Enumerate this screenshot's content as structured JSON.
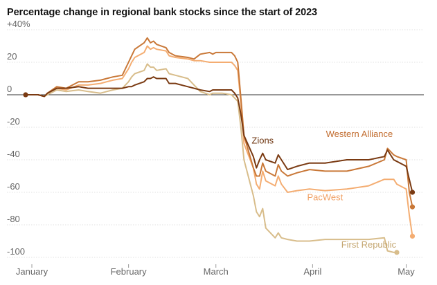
{
  "chart_data": {
    "type": "line",
    "title": "Percentage change in regional bank stocks since the start of 2023",
    "xlabel": "",
    "ylabel": "",
    "ylim": [
      -103,
      43
    ],
    "yticks": [
      40,
      20,
      0,
      -20,
      -40,
      -60,
      -80,
      -100
    ],
    "ytick_labels": [
      "+40%",
      "20",
      "0",
      "-20",
      "-40",
      "-60",
      "-80",
      "-100"
    ],
    "xlim": [
      "2022-12-30",
      "2023-05-06"
    ],
    "xticks": [
      "2023-01-01",
      "2023-02-01",
      "2023-03-01",
      "2023-04-01",
      "2023-05-01"
    ],
    "xtick_labels": [
      "January",
      "February",
      "March",
      "April",
      "May"
    ],
    "grid": "horizontal",
    "legend": "inline labels",
    "series": [
      {
        "name": "First Republic",
        "color": "#d8bd8b",
        "label_at": [
          "2023-04-19",
          -94
        ],
        "label_color": "#c4a670",
        "end_dot": true,
        "points": [
          [
            "2023-01-03",
            0
          ],
          [
            "2023-01-05",
            -1
          ],
          [
            "2023-01-06",
            0
          ],
          [
            "2023-01-09",
            3
          ],
          [
            "2023-01-12",
            2
          ],
          [
            "2023-01-16",
            3
          ],
          [
            "2023-01-19",
            2
          ],
          [
            "2023-01-23",
            1
          ],
          [
            "2023-01-25",
            2
          ],
          [
            "2023-01-27",
            3
          ],
          [
            "2023-01-30",
            4
          ],
          [
            "2023-02-01",
            8
          ],
          [
            "2023-02-02",
            11
          ],
          [
            "2023-02-03",
            13
          ],
          [
            "2023-02-06",
            15
          ],
          [
            "2023-02-07",
            19
          ],
          [
            "2023-02-08",
            17
          ],
          [
            "2023-02-09",
            17
          ],
          [
            "2023-02-10",
            15
          ],
          [
            "2023-02-13",
            16
          ],
          [
            "2023-02-14",
            13
          ],
          [
            "2023-02-16",
            12
          ],
          [
            "2023-02-20",
            10
          ],
          [
            "2023-02-22",
            6
          ],
          [
            "2023-02-24",
            2
          ],
          [
            "2023-02-27",
            0
          ],
          [
            "2023-02-28",
            1
          ],
          [
            "2023-03-01",
            1
          ],
          [
            "2023-03-03",
            1
          ],
          [
            "2023-03-06",
            0
          ],
          [
            "2023-03-07",
            -2
          ],
          [
            "2023-03-08",
            -4
          ],
          [
            "2023-03-09",
            -20
          ],
          [
            "2023-03-10",
            -40
          ],
          [
            "2023-03-13",
            -62
          ],
          [
            "2023-03-14",
            -72
          ],
          [
            "2023-03-15",
            -75
          ],
          [
            "2023-03-16",
            -70
          ],
          [
            "2023-03-17",
            -82
          ],
          [
            "2023-03-20",
            -88
          ],
          [
            "2023-03-21",
            -85
          ],
          [
            "2023-03-22",
            -88
          ],
          [
            "2023-03-24",
            -89
          ],
          [
            "2023-03-27",
            -90
          ],
          [
            "2023-03-31",
            -90
          ],
          [
            "2023-04-05",
            -89
          ],
          [
            "2023-04-12",
            -89
          ],
          [
            "2023-04-19",
            -89
          ],
          [
            "2023-04-24",
            -88
          ],
          [
            "2023-04-25",
            -96
          ],
          [
            "2023-04-27",
            -97
          ],
          [
            "2023-04-28",
            -97
          ]
        ]
      },
      {
        "name": "PacWest",
        "color": "#f4ad72",
        "label_at": [
          "2023-04-05",
          -65
        ],
        "label_color": "#f0a064",
        "end_dot": true,
        "points": [
          [
            "2023-01-03",
            0
          ],
          [
            "2023-01-05",
            -1
          ],
          [
            "2023-01-06",
            1
          ],
          [
            "2023-01-09",
            4
          ],
          [
            "2023-01-12",
            3
          ],
          [
            "2023-01-16",
            6
          ],
          [
            "2023-01-19",
            6
          ],
          [
            "2023-01-23",
            7
          ],
          [
            "2023-01-25",
            8
          ],
          [
            "2023-01-27",
            9
          ],
          [
            "2023-01-30",
            10
          ],
          [
            "2023-02-01",
            16
          ],
          [
            "2023-02-02",
            20
          ],
          [
            "2023-02-03",
            23
          ],
          [
            "2023-02-06",
            26
          ],
          [
            "2023-02-07",
            30
          ],
          [
            "2023-02-08",
            28
          ],
          [
            "2023-02-09",
            29
          ],
          [
            "2023-02-10",
            28
          ],
          [
            "2023-02-13",
            27
          ],
          [
            "2023-02-14",
            24
          ],
          [
            "2023-02-16",
            23
          ],
          [
            "2023-02-20",
            22
          ],
          [
            "2023-02-22",
            21
          ],
          [
            "2023-02-24",
            21
          ],
          [
            "2023-02-27",
            20
          ],
          [
            "2023-02-28",
            20
          ],
          [
            "2023-03-01",
            20
          ],
          [
            "2023-03-03",
            20
          ],
          [
            "2023-03-06",
            20
          ],
          [
            "2023-03-07",
            18
          ],
          [
            "2023-03-08",
            15
          ],
          [
            "2023-03-09",
            -5
          ],
          [
            "2023-03-10",
            -30
          ],
          [
            "2023-03-13",
            -45
          ],
          [
            "2023-03-14",
            -55
          ],
          [
            "2023-03-15",
            -58
          ],
          [
            "2023-03-16",
            -47
          ],
          [
            "2023-03-17",
            -53
          ],
          [
            "2023-03-20",
            -56
          ],
          [
            "2023-03-21",
            -50
          ],
          [
            "2023-03-22",
            -55
          ],
          [
            "2023-03-24",
            -60
          ],
          [
            "2023-03-27",
            -59
          ],
          [
            "2023-03-31",
            -58
          ],
          [
            "2023-04-05",
            -59
          ],
          [
            "2023-04-12",
            -58
          ],
          [
            "2023-04-19",
            -56
          ],
          [
            "2023-04-24",
            -52
          ],
          [
            "2023-04-27",
            -52
          ],
          [
            "2023-04-28",
            -55
          ],
          [
            "2023-05-01",
            -58
          ],
          [
            "2023-05-02",
            -74
          ],
          [
            "2023-05-03",
            -87
          ]
        ]
      },
      {
        "name": "Western Alliance",
        "color": "#c97838",
        "label_at": [
          "2023-04-16",
          -26
        ],
        "label_color": "#c26d30",
        "end_dot": true,
        "points": [
          [
            "2023-01-03",
            0
          ],
          [
            "2023-01-05",
            -1
          ],
          [
            "2023-01-06",
            1
          ],
          [
            "2023-01-09",
            5
          ],
          [
            "2023-01-12",
            4
          ],
          [
            "2023-01-16",
            8
          ],
          [
            "2023-01-19",
            8
          ],
          [
            "2023-01-23",
            9
          ],
          [
            "2023-01-25",
            10
          ],
          [
            "2023-01-27",
            11
          ],
          [
            "2023-01-30",
            12
          ],
          [
            "2023-02-01",
            20
          ],
          [
            "2023-02-02",
            24
          ],
          [
            "2023-02-03",
            28
          ],
          [
            "2023-02-06",
            32
          ],
          [
            "2023-02-07",
            35
          ],
          [
            "2023-02-08",
            32
          ],
          [
            "2023-02-09",
            33
          ],
          [
            "2023-02-10",
            31
          ],
          [
            "2023-02-13",
            29
          ],
          [
            "2023-02-14",
            26
          ],
          [
            "2023-02-16",
            24
          ],
          [
            "2023-02-20",
            23
          ],
          [
            "2023-02-22",
            22
          ],
          [
            "2023-02-24",
            25
          ],
          [
            "2023-02-27",
            26
          ],
          [
            "2023-02-28",
            25
          ],
          [
            "2023-03-01",
            26
          ],
          [
            "2023-03-03",
            26
          ],
          [
            "2023-03-06",
            26
          ],
          [
            "2023-03-07",
            24
          ],
          [
            "2023-03-08",
            20
          ],
          [
            "2023-03-09",
            -2
          ],
          [
            "2023-03-10",
            -25
          ],
          [
            "2023-03-13",
            -45
          ],
          [
            "2023-03-14",
            -50
          ],
          [
            "2023-03-15",
            -50
          ],
          [
            "2023-03-16",
            -42
          ],
          [
            "2023-03-17",
            -47
          ],
          [
            "2023-03-20",
            -50
          ],
          [
            "2023-03-21",
            -43
          ],
          [
            "2023-03-22",
            -47
          ],
          [
            "2023-03-24",
            -50
          ],
          [
            "2023-03-27",
            -48
          ],
          [
            "2023-03-31",
            -46
          ],
          [
            "2023-04-05",
            -47
          ],
          [
            "2023-04-12",
            -47
          ],
          [
            "2023-04-19",
            -44
          ],
          [
            "2023-04-24",
            -40
          ],
          [
            "2023-04-25",
            -33
          ],
          [
            "2023-04-27",
            -37
          ],
          [
            "2023-04-28",
            -38
          ],
          [
            "2023-05-01",
            -40
          ],
          [
            "2023-05-02",
            -60
          ],
          [
            "2023-05-03",
            -69
          ]
        ]
      },
      {
        "name": "Zions",
        "color": "#7a3a12",
        "label_at": [
          "2023-03-16",
          -30
        ],
        "label_color": "#6e3510",
        "end_dot": true,
        "points": [
          [
            "2022-12-30",
            0
          ],
          [
            "2023-01-03",
            0
          ],
          [
            "2023-01-05",
            -1
          ],
          [
            "2023-01-06",
            1
          ],
          [
            "2023-01-09",
            4
          ],
          [
            "2023-01-12",
            4
          ],
          [
            "2023-01-16",
            5
          ],
          [
            "2023-01-19",
            4
          ],
          [
            "2023-01-23",
            4
          ],
          [
            "2023-01-25",
            4
          ],
          [
            "2023-01-27",
            4
          ],
          [
            "2023-01-30",
            4
          ],
          [
            "2023-02-01",
            5
          ],
          [
            "2023-02-02",
            5
          ],
          [
            "2023-02-03",
            6
          ],
          [
            "2023-02-06",
            8
          ],
          [
            "2023-02-07",
            10
          ],
          [
            "2023-02-08",
            10
          ],
          [
            "2023-02-09",
            11
          ],
          [
            "2023-02-10",
            10
          ],
          [
            "2023-02-13",
            10
          ],
          [
            "2023-02-14",
            7
          ],
          [
            "2023-02-16",
            7
          ],
          [
            "2023-02-20",
            5
          ],
          [
            "2023-02-22",
            4
          ],
          [
            "2023-02-24",
            3
          ],
          [
            "2023-02-27",
            2
          ],
          [
            "2023-02-28",
            3
          ],
          [
            "2023-03-01",
            3
          ],
          [
            "2023-03-03",
            3
          ],
          [
            "2023-03-06",
            3
          ],
          [
            "2023-03-07",
            1
          ],
          [
            "2023-03-08",
            -2
          ],
          [
            "2023-03-09",
            -12
          ],
          [
            "2023-03-10",
            -25
          ],
          [
            "2023-03-13",
            -38
          ],
          [
            "2023-03-14",
            -45
          ],
          [
            "2023-03-15",
            -40
          ],
          [
            "2023-03-16",
            -36
          ],
          [
            "2023-03-17",
            -40
          ],
          [
            "2023-03-20",
            -42
          ],
          [
            "2023-03-21",
            -37
          ],
          [
            "2023-03-22",
            -40
          ],
          [
            "2023-03-24",
            -46
          ],
          [
            "2023-03-27",
            -44
          ],
          [
            "2023-03-31",
            -42
          ],
          [
            "2023-04-05",
            -42
          ],
          [
            "2023-04-12",
            -40
          ],
          [
            "2023-04-19",
            -40
          ],
          [
            "2023-04-24",
            -38
          ],
          [
            "2023-04-25",
            -34
          ],
          [
            "2023-04-27",
            -40
          ],
          [
            "2023-04-28",
            -41
          ],
          [
            "2023-05-01",
            -44
          ],
          [
            "2023-05-02",
            -52
          ],
          [
            "2023-05-03",
            -60
          ]
        ]
      }
    ]
  }
}
